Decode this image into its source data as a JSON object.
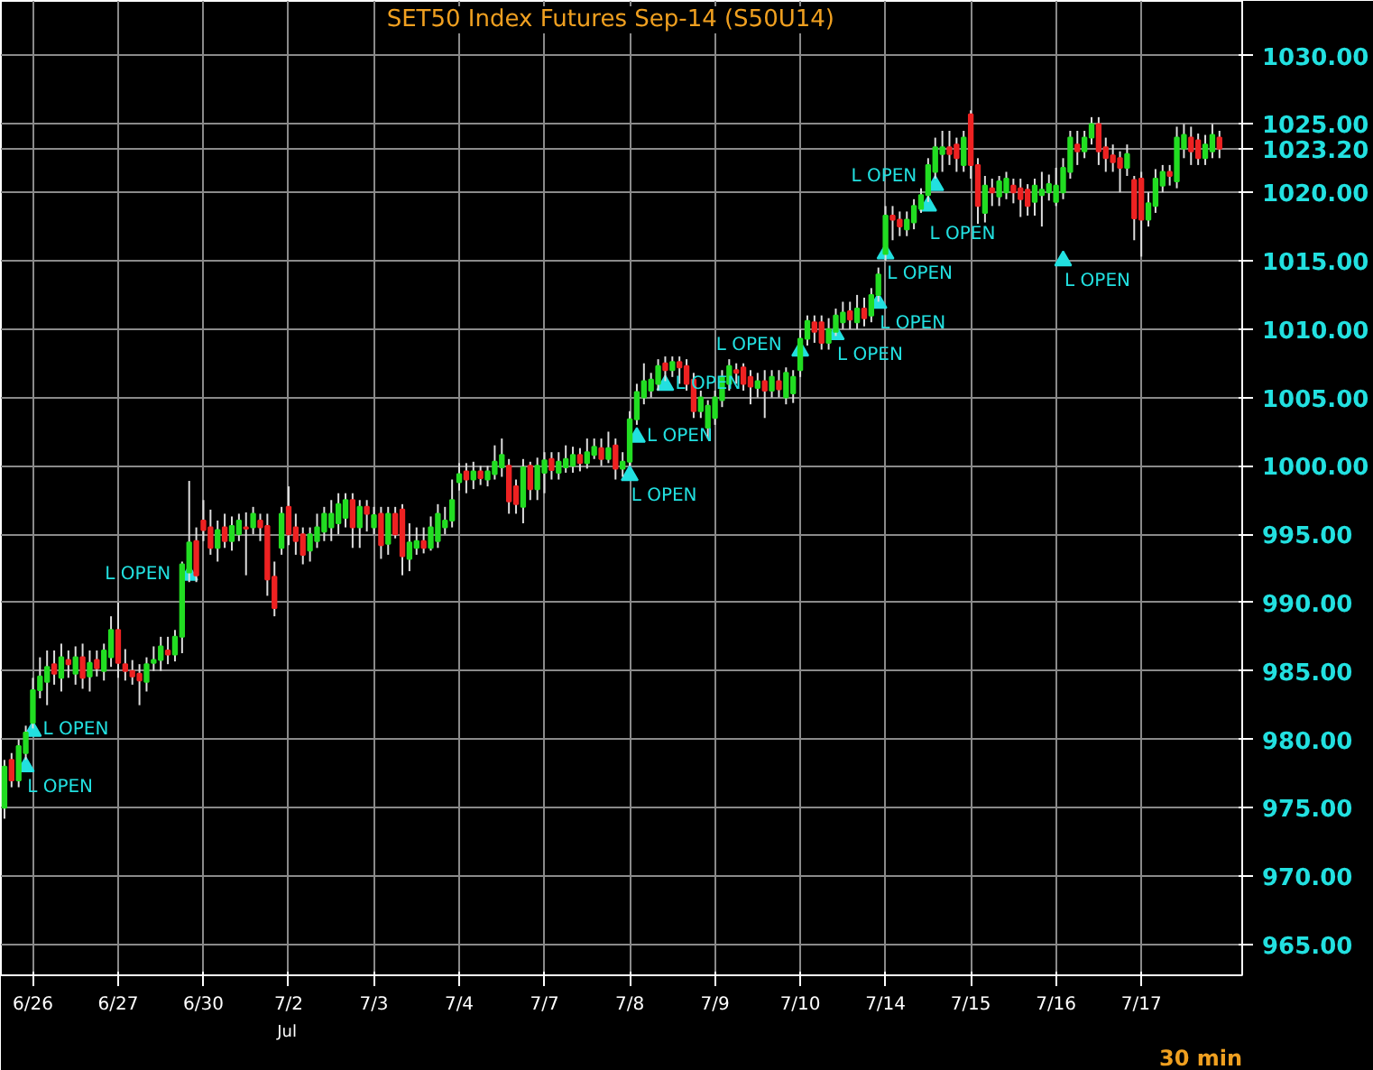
{
  "chart_data": {
    "type": "candlestick",
    "title": "SET50  Index Futures Sep-14  (S50U14)",
    "categories": [
      null,
      null,
      null,
      null,
      "6/26",
      null,
      null,
      null,
      null,
      null,
      null,
      null,
      null,
      null,
      null,
      null,
      "6/27",
      null,
      null,
      null,
      null,
      null,
      null,
      null,
      null,
      null,
      null,
      null,
      "6/30",
      null,
      null,
      null,
      null,
      null,
      null,
      null,
      null,
      null,
      null,
      null,
      "7/2",
      null,
      null,
      null,
      null,
      null,
      null,
      null,
      null,
      null,
      null,
      null,
      "7/3",
      null,
      null,
      null,
      null,
      null,
      null,
      null,
      null,
      null,
      null,
      null,
      "7/4",
      null,
      null,
      null,
      null,
      null,
      null,
      null,
      null,
      null,
      null,
      null,
      "7/7",
      null,
      null,
      null,
      null,
      null,
      null,
      null,
      null,
      null,
      null,
      null,
      "7/8",
      null,
      null,
      null,
      null,
      null,
      null,
      null,
      null,
      null,
      null,
      null,
      "7/9",
      null,
      null,
      null,
      null,
      null,
      null,
      null,
      null,
      null,
      null,
      null,
      "7/10",
      null,
      null,
      null,
      null,
      null,
      null,
      null,
      null,
      null,
      null,
      null,
      "7/14",
      null,
      null,
      null,
      null,
      null,
      null,
      null,
      null,
      null,
      null,
      null,
      "7/15",
      null,
      null,
      null,
      null,
      null,
      null,
      null,
      null,
      null,
      null,
      null,
      "7/16",
      null,
      null,
      null,
      null,
      null,
      null,
      null,
      null,
      null,
      null,
      null,
      "7/17",
      null,
      null,
      null,
      null,
      null,
      null,
      null,
      null,
      null,
      null,
      null
    ],
    "ohlc": [
      [
        975,
        978.5,
        974.2,
        978
      ],
      [
        978.5,
        979,
        976.5,
        977
      ],
      [
        977,
        980,
        976.5,
        979.5
      ],
      [
        979,
        981,
        978.5,
        980.5
      ],
      [
        981.2,
        984.5,
        980.8,
        983.6
      ],
      [
        983.6,
        986,
        983,
        984.6
      ],
      [
        984.2,
        986.5,
        982.5,
        985.3
      ],
      [
        985.5,
        986.5,
        984,
        984.8
      ],
      [
        984.5,
        987,
        983.5,
        986
      ],
      [
        985.8,
        986.5,
        984.5,
        985.5
      ],
      [
        984.8,
        986.8,
        984,
        986
      ],
      [
        986,
        987,
        983.7,
        984.5
      ],
      [
        984.6,
        986.5,
        983.5,
        985.6
      ],
      [
        985.8,
        986.5,
        984.6,
        985.2
      ],
      [
        985,
        987,
        984.3,
        986.5
      ],
      [
        986,
        989,
        985.3,
        988
      ],
      [
        988,
        990,
        984.5,
        985.6
      ],
      [
        985.5,
        986.6,
        984.3,
        985
      ],
      [
        985,
        985.8,
        984,
        984.6
      ],
      [
        984.8,
        985.5,
        982.5,
        984.3
      ],
      [
        984.2,
        986,
        983.5,
        985.5
      ],
      [
        985.6,
        986.8,
        985,
        985.8
      ],
      [
        985.8,
        987.5,
        985,
        986.8
      ],
      [
        986.5,
        987.5,
        985.5,
        986.2
      ],
      [
        986.2,
        988,
        985.7,
        987.5
      ],
      [
        987.5,
        993,
        986.3,
        992.8
      ],
      [
        992.2,
        998.9,
        991.5,
        994.4
      ],
      [
        994.5,
        995.5,
        991.5,
        992
      ],
      [
        996,
        997.5,
        994.5,
        995.3
      ],
      [
        995.5,
        996.8,
        993.5,
        994
      ],
      [
        994,
        996,
        993,
        995.3
      ],
      [
        995.5,
        996.5,
        994,
        994.5
      ],
      [
        994.5,
        996.3,
        993.8,
        995.6
      ],
      [
        995,
        996.5,
        994.5,
        996
      ],
      [
        995.5,
        996.6,
        992,
        995.4
      ],
      [
        995.5,
        997,
        995,
        996.5
      ],
      [
        996,
        996.5,
        994.5,
        995.5
      ],
      [
        995.6,
        996.5,
        990.5,
        991.7
      ],
      [
        991.9,
        993,
        989,
        989.6
      ],
      [
        994,
        997,
        993.5,
        996.5
      ],
      [
        997,
        998.5,
        994.2,
        995
      ],
      [
        995.5,
        996.5,
        993.5,
        994.5
      ],
      [
        995,
        995.5,
        992.8,
        993.5
      ],
      [
        993.8,
        995.5,
        993,
        995
      ],
      [
        994.5,
        996.5,
        994,
        995.5
      ],
      [
        995.2,
        997,
        994.5,
        996.5
      ],
      [
        995.5,
        997.5,
        994.5,
        996.5
      ],
      [
        995.8,
        998,
        995,
        997.2
      ],
      [
        996.2,
        998,
        995.5,
        997.5
      ],
      [
        997.5,
        998,
        994,
        995.5
      ],
      [
        995.5,
        997.5,
        994,
        997
      ],
      [
        997,
        997.5,
        995.2,
        996.5
      ],
      [
        995.5,
        997,
        995,
        996.4
      ],
      [
        996.5,
        997,
        993.2,
        994.2
      ],
      [
        994.3,
        997,
        993.5,
        996.5
      ],
      [
        996.5,
        997,
        994.7,
        995
      ],
      [
        996.8,
        997.2,
        992,
        993.4
      ],
      [
        993.2,
        995.8,
        992.3,
        994.4
      ],
      [
        994,
        995.5,
        993.5,
        994.5
      ],
      [
        994.5,
        995.5,
        993.6,
        994
      ],
      [
        994,
        996.3,
        993.8,
        995.5
      ],
      [
        994.5,
        997.2,
        994,
        996.5
      ],
      [
        995.5,
        997,
        995,
        996
      ],
      [
        996,
        999,
        995.5,
        997.5
      ],
      [
        998.8,
        1000.2,
        998.2,
        999.4
      ],
      [
        999.6,
        1000.2,
        998,
        999
      ],
      [
        999,
        1000.3,
        998.3,
        999.6
      ],
      [
        999.6,
        1000,
        998.6,
        999.1
      ],
      [
        999,
        1000,
        998.5,
        999.6
      ],
      [
        999.4,
        1001.5,
        999,
        1000.3
      ],
      [
        999.9,
        1002,
        999.2,
        1000.8
      ],
      [
        1000,
        1000.5,
        996.5,
        997.4
      ],
      [
        998.5,
        999,
        996.5,
        997.2
      ],
      [
        997,
        1000.5,
        995.8,
        999.9
      ],
      [
        1000,
        1000.3,
        997.5,
        998.3
      ],
      [
        998.3,
        1000.6,
        997.5,
        1000
      ],
      [
        999.5,
        1001,
        998,
        1000.4
      ],
      [
        1000.5,
        1001,
        999,
        999.7
      ],
      [
        999.5,
        1001,
        999,
        1000.3
      ],
      [
        999.9,
        1001.5,
        999.5,
        1000.5
      ],
      [
        1000,
        1001.4,
        999.5,
        1000.8
      ],
      [
        1000.8,
        1001.3,
        999.6,
        1000.2
      ],
      [
        1000.2,
        1002,
        999.8,
        1001
      ],
      [
        1000.8,
        1002,
        1000.5,
        1001.4
      ],
      [
        1001.3,
        1002,
        1000,
        1000.5
      ],
      [
        1000.5,
        1002.5,
        1000.2,
        1001.3
      ],
      [
        1001.5,
        1002,
        999,
        999.8
      ],
      [
        999.8,
        1001,
        999.2,
        1000.3
      ],
      [
        1000.3,
        1004,
        1000,
        1003.4
      ],
      [
        1003.4,
        1006,
        1003,
        1005.4
      ],
      [
        1005,
        1007.5,
        1004.5,
        1006.2
      ],
      [
        1005.5,
        1006.8,
        1005,
        1006.3
      ],
      [
        1006,
        1007.8,
        1005.5,
        1007.3
      ],
      [
        1007.5,
        1008,
        1006.2,
        1007
      ],
      [
        1007,
        1008,
        1006.5,
        1007.6
      ],
      [
        1007.6,
        1008,
        1006,
        1007.2
      ],
      [
        1007.3,
        1007.8,
        1005.5,
        1006
      ],
      [
        1006.3,
        1006.8,
        1003.5,
        1004
      ],
      [
        1004,
        1005.5,
        1003.5,
        1005
      ],
      [
        1002.8,
        1004.8,
        1002,
        1004.4
      ],
      [
        1003.5,
        1005.5,
        1003,
        1005
      ],
      [
        1004.8,
        1007,
        1004.3,
        1006.5
      ],
      [
        1006,
        1007.8,
        1005.5,
        1007.3
      ],
      [
        1007,
        1007.5,
        1006,
        1006.8
      ],
      [
        1007.2,
        1007.5,
        1005.5,
        1006
      ],
      [
        1006.5,
        1007,
        1004.5,
        1005.8
      ],
      [
        1005.7,
        1006.8,
        1005,
        1006.2
      ],
      [
        1006.2,
        1007,
        1003.5,
        1005.5
      ],
      [
        1005.5,
        1007,
        1005,
        1006.5
      ],
      [
        1006.2,
        1007,
        1005,
        1005.6
      ],
      [
        1005,
        1007.2,
        1004.5,
        1006.8
      ],
      [
        1005.3,
        1007,
        1004.6,
        1006.5
      ],
      [
        1007,
        1010,
        1006.5,
        1009.3
      ],
      [
        1009.3,
        1011,
        1008.8,
        1010.6
      ],
      [
        1010.5,
        1011,
        1009,
        1009.8
      ],
      [
        1010.5,
        1011,
        1008.5,
        1009
      ],
      [
        1009,
        1010.8,
        1008.5,
        1010
      ],
      [
        1009.8,
        1011.5,
        1009.5,
        1011
      ],
      [
        1010.5,
        1012,
        1010,
        1011.2
      ],
      [
        1011.3,
        1012,
        1010,
        1010.7
      ],
      [
        1010.5,
        1012.5,
        1010,
        1011.5
      ],
      [
        1011.5,
        1012.3,
        1010.2,
        1010.8
      ],
      [
        1011,
        1013,
        1010.5,
        1012.5
      ],
      [
        1012.5,
        1014.5,
        1012,
        1014
      ],
      [
        1015.5,
        1019,
        1015,
        1018.3
      ],
      [
        1018.3,
        1019,
        1016.5,
        1018
      ],
      [
        1018,
        1018.6,
        1016.8,
        1017.5
      ],
      [
        1017.3,
        1018.6,
        1016.8,
        1018
      ],
      [
        1017.8,
        1019.5,
        1017.3,
        1019
      ],
      [
        1018.8,
        1020.3,
        1018.5,
        1019.8
      ],
      [
        1019.8,
        1022.5,
        1019.3,
        1022
      ],
      [
        1021.5,
        1024,
        1021,
        1023.3
      ],
      [
        1022.8,
        1024.5,
        1021.5,
        1023.3
      ],
      [
        1023.3,
        1024.5,
        1022,
        1022.8
      ],
      [
        1023.5,
        1024,
        1021.5,
        1022.5
      ],
      [
        1022,
        1024.5,
        1021.5,
        1024
      ],
      [
        1025.7,
        1026,
        1021,
        1022
      ],
      [
        1022,
        1022.5,
        1017.7,
        1019
      ],
      [
        1018.5,
        1021.2,
        1017.8,
        1020.5
      ],
      [
        1020.3,
        1021,
        1019,
        1020
      ],
      [
        1019.7,
        1021.2,
        1019,
        1020.8
      ],
      [
        1020,
        1021.5,
        1019.5,
        1021
      ],
      [
        1020.5,
        1021,
        1019.2,
        1020
      ],
      [
        1020.3,
        1021,
        1018.2,
        1019.5
      ],
      [
        1020.2,
        1020.6,
        1018.3,
        1019
      ],
      [
        1019.3,
        1021,
        1018.3,
        1020.5
      ],
      [
        1019.8,
        1021.5,
        1017.5,
        1020.2
      ],
      [
        1020,
        1021.3,
        1019.4,
        1020.6
      ],
      [
        1019.3,
        1021.8,
        1019,
        1020.5
      ],
      [
        1020,
        1022.5,
        1019.5,
        1021.8
      ],
      [
        1021.5,
        1024.5,
        1021,
        1024
      ],
      [
        1023.5,
        1024.5,
        1022,
        1023
      ],
      [
        1023,
        1024.5,
        1022.5,
        1024
      ],
      [
        1024,
        1025.5,
        1023.5,
        1025
      ],
      [
        1025,
        1025.5,
        1022,
        1023
      ],
      [
        1023.3,
        1024,
        1021.5,
        1022.5
      ],
      [
        1022.7,
        1023.5,
        1021.5,
        1022.2
      ],
      [
        1022.5,
        1023,
        1020,
        1021.8
      ],
      [
        1021.8,
        1023.5,
        1021.2,
        1022.8
      ],
      [
        1020.9,
        1021.2,
        1016.5,
        1018.1
      ],
      [
        1021,
        1021.5,
        1015.3,
        1018
      ],
      [
        1018,
        1020,
        1017.5,
        1019.2
      ],
      [
        1019,
        1021.7,
        1018.5,
        1021
      ],
      [
        1020.5,
        1022,
        1020,
        1021.5
      ],
      [
        1021.5,
        1022,
        1020.5,
        1021.2
      ],
      [
        1020.8,
        1024.8,
        1020.3,
        1024
      ],
      [
        1023.2,
        1025,
        1022.5,
        1024.2
      ],
      [
        1024,
        1024.8,
        1022,
        1023
      ],
      [
        1023.8,
        1024.3,
        1022,
        1022.5
      ],
      [
        1022.5,
        1024.2,
        1022,
        1023.5
      ],
      [
        1023,
        1025,
        1022.5,
        1024.2
      ],
      [
        1024,
        1024.5,
        1022.5,
        1023.2
      ]
    ],
    "series": [
      {
        "type": "scatter",
        "color": "#22e0e0",
        "marker": "triangle",
        "values": [
          null,
          null,
          null,
          978,
          980.6,
          null,
          null,
          null,
          null,
          null,
          null,
          null,
          null,
          null,
          null,
          null,
          null,
          null,
          null,
          null,
          null,
          null,
          null,
          null,
          null,
          null,
          992,
          null,
          null,
          null,
          null,
          null,
          null,
          null,
          null,
          null,
          null,
          null,
          null,
          null,
          null,
          null,
          null,
          null,
          null,
          null,
          null,
          null,
          null,
          null,
          null,
          null,
          null,
          null,
          null,
          null,
          null,
          null,
          null,
          null,
          null,
          null,
          null,
          null,
          null,
          null,
          null,
          null,
          null,
          null,
          null,
          null,
          null,
          null,
          null,
          null,
          null,
          null,
          null,
          null,
          null,
          null,
          null,
          null,
          null,
          null,
          null,
          null,
          999.3,
          1002.1,
          null,
          null,
          null,
          1005.9,
          null,
          null,
          null,
          null,
          null,
          null,
          null,
          null,
          null,
          null,
          null,
          null,
          null,
          null,
          null,
          null,
          null,
          null,
          1008.4,
          null,
          null,
          null,
          null,
          1009.6,
          null,
          null,
          null,
          null,
          null,
          1011.9,
          1015.5,
          null,
          null,
          null,
          null,
          null,
          1019,
          1020.5,
          null,
          null,
          null,
          null,
          null,
          null,
          null,
          null,
          null,
          null,
          null,
          null,
          null,
          null,
          null,
          null,
          null,
          1015,
          null,
          null,
          null,
          null,
          null,
          null,
          null,
          null,
          null,
          null,
          null,
          null,
          null,
          null,
          null,
          null,
          null,
          null,
          null,
          null,
          null,
          null
        ],
        "value_labels": [
          null,
          null,
          null,
          "L OPEN",
          "L OPEN",
          null,
          null,
          null,
          null,
          null,
          null,
          null,
          null,
          null,
          null,
          null,
          null,
          null,
          null,
          null,
          null,
          null,
          null,
          null,
          null,
          null,
          "L OPEN",
          null,
          null,
          null,
          null,
          null,
          null,
          null,
          null,
          null,
          null,
          null,
          null,
          null,
          null,
          null,
          null,
          null,
          null,
          null,
          null,
          null,
          null,
          null,
          null,
          null,
          null,
          null,
          null,
          null,
          null,
          null,
          null,
          null,
          null,
          null,
          null,
          null,
          null,
          null,
          null,
          null,
          null,
          null,
          null,
          null,
          null,
          null,
          null,
          null,
          null,
          null,
          null,
          null,
          null,
          null,
          null,
          null,
          null,
          null,
          null,
          null,
          "L OPEN",
          "L OPEN",
          null,
          null,
          null,
          "L OPEN",
          null,
          null,
          null,
          null,
          null,
          null,
          null,
          null,
          null,
          null,
          null,
          null,
          null,
          null,
          null,
          null,
          null,
          null,
          "L OPEN",
          null,
          null,
          null,
          null,
          "L OPEN",
          null,
          null,
          null,
          null,
          null,
          "L OPEN",
          "L OPEN",
          null,
          null,
          null,
          null,
          null,
          "L OPEN",
          "L OPEN",
          null,
          null,
          null,
          null,
          null,
          null,
          null,
          null,
          null,
          null,
          null,
          null,
          null,
          null,
          null,
          null,
          null,
          "L OPEN",
          null,
          null,
          null,
          null,
          null,
          null,
          null,
          null,
          null,
          null,
          null,
          null,
          null,
          null,
          null,
          null,
          null,
          null,
          null,
          null,
          null,
          null
        ]
      }
    ],
    "ylim": [
      962.75,
      1034
    ],
    "yticks": [
      {
        "value": 965,
        "label": "965.00"
      },
      {
        "value": 970,
        "label": "970.00"
      },
      {
        "value": 975,
        "label": "975.00"
      },
      {
        "value": 980,
        "label": "980.00"
      },
      {
        "value": 985,
        "label": "985.00"
      },
      {
        "value": 990,
        "label": "990.00"
      },
      {
        "value": 995,
        "label": "995.00"
      },
      {
        "value": 1000,
        "label": "1000.00"
      },
      {
        "value": 1005,
        "label": "1005.00"
      },
      {
        "value": 1010,
        "label": "1010.00"
      },
      {
        "value": 1015,
        "label": "1015.00"
      },
      {
        "value": 1020,
        "label": "1020.00"
      },
      {
        "value": 1023.2,
        "label": "1023.20"
      },
      {
        "value": 1025,
        "label": "1025.00"
      },
      {
        "value": 1030,
        "label": "1030.00"
      }
    ],
    "grid": true,
    "annotations": [
      "Jul",
      "30 min"
    ]
  }
}
